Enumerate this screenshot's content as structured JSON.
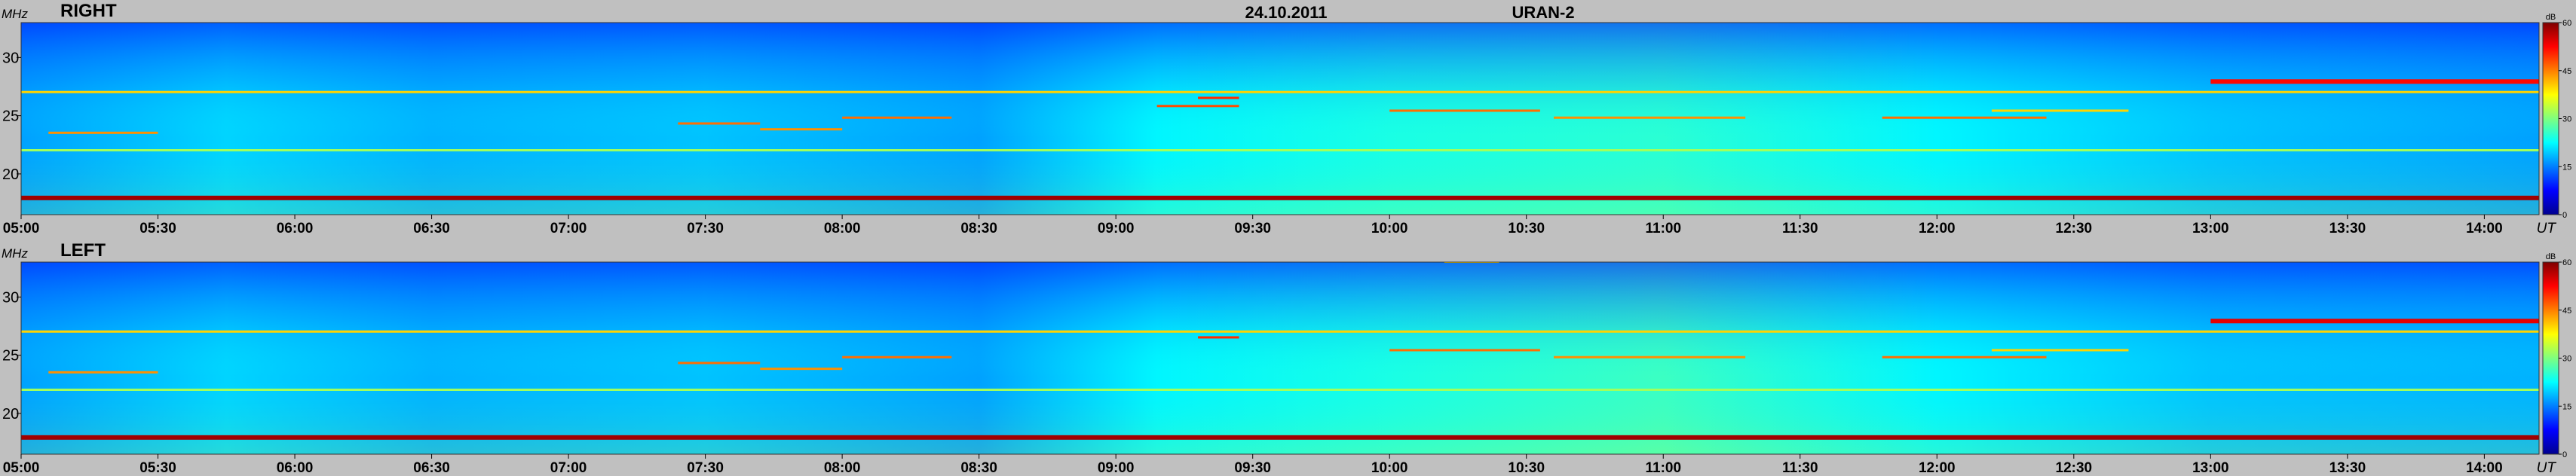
{
  "header": {
    "date": "24.10.2011",
    "instrument": "URAN-2"
  },
  "labels": {
    "freq_unit": "MHz",
    "time_unit": "UT",
    "colorbar_unit": "dB"
  },
  "colors": {
    "background": "#c0c0c0",
    "colormap": [
      "#00008f",
      "#0000ff",
      "#007fff",
      "#00ffff",
      "#7fff7f",
      "#ffff00",
      "#ff7f00",
      "#ff0000",
      "#7f0000"
    ]
  },
  "chart_data": [
    {
      "type": "heatmap",
      "title": "RIGHT",
      "x": {
        "ticks": [
          "05:00",
          "05:30",
          "06:00",
          "06:30",
          "07:00",
          "07:30",
          "08:00",
          "08:30",
          "09:00",
          "09:30",
          "10:00",
          "10:30",
          "11:00",
          "11:30",
          "12:00",
          "12:30",
          "13:00",
          "13:30",
          "14:00"
        ],
        "range_hours": [
          5.0,
          14.2
        ]
      },
      "y": {
        "ticks": [
          20,
          25,
          30
        ],
        "range": [
          16.5,
          33.0
        ]
      },
      "colorbar": {
        "ticks": [
          0,
          15,
          30,
          45,
          60
        ],
        "range": [
          0,
          60
        ]
      },
      "base_level": [
        {
          "t": 5.0,
          "v": 17
        },
        {
          "t": 5.75,
          "v": 20
        },
        {
          "t": 6.5,
          "v": 18
        },
        {
          "t": 7.5,
          "v": 19
        },
        {
          "t": 8.5,
          "v": 17
        },
        {
          "t": 9.15,
          "v": 22
        },
        {
          "t": 10.0,
          "v": 24
        },
        {
          "t": 11.0,
          "v": 25
        },
        {
          "t": 12.0,
          "v": 22
        },
        {
          "t": 13.0,
          "v": 19
        },
        {
          "t": 14.2,
          "v": 17
        }
      ],
      "interference_bands": [
        {
          "freq": 18.0,
          "level": 58,
          "t_start": 5.0,
          "t_end": 14.2
        },
        {
          "freq": 27.0,
          "level": 40,
          "t_start": 5.0,
          "t_end": 14.2
        },
        {
          "freq": 22.0,
          "level": 32,
          "t_start": 5.0,
          "t_end": 14.2
        },
        {
          "freq": 23.5,
          "level": 44,
          "t_start": 5.1,
          "t_end": 5.5
        },
        {
          "freq": 24.3,
          "level": 46,
          "t_start": 7.4,
          "t_end": 7.7
        },
        {
          "freq": 23.8,
          "level": 44,
          "t_start": 7.7,
          "t_end": 8.0
        },
        {
          "freq": 24.8,
          "level": 46,
          "t_start": 8.0,
          "t_end": 8.4
        },
        {
          "freq": 25.8,
          "level": 48,
          "t_start": 9.15,
          "t_end": 9.45
        },
        {
          "freq": 26.5,
          "level": 50,
          "t_start": 9.3,
          "t_end": 9.45
        },
        {
          "freq": 25.4,
          "level": 46,
          "t_start": 10.0,
          "t_end": 10.55
        },
        {
          "freq": 24.8,
          "level": 44,
          "t_start": 10.6,
          "t_end": 11.3
        },
        {
          "freq": 24.8,
          "level": 46,
          "t_start": 11.8,
          "t_end": 12.4
        },
        {
          "freq": 25.4,
          "level": 40,
          "t_start": 12.2,
          "t_end": 12.7
        },
        {
          "freq": 28.0,
          "level": 52,
          "t_start": 13.0,
          "t_end": 14.2
        }
      ]
    },
    {
      "type": "heatmap",
      "title": "LEFT",
      "x": {
        "ticks": [
          "05:00",
          "05:30",
          "06:00",
          "06:30",
          "07:00",
          "07:30",
          "08:00",
          "08:30",
          "09:00",
          "09:30",
          "10:00",
          "10:30",
          "11:00",
          "11:30",
          "12:00",
          "12:30",
          "13:00",
          "13:30",
          "14:00"
        ],
        "range_hours": [
          5.0,
          14.2
        ]
      },
      "y": {
        "ticks": [
          20,
          25,
          30
        ],
        "range": [
          16.5,
          33.0
        ]
      },
      "colorbar": {
        "ticks": [
          0,
          15,
          30,
          45,
          60
        ],
        "range": [
          0,
          60
        ]
      },
      "base_level": [
        {
          "t": 5.0,
          "v": 17
        },
        {
          "t": 5.75,
          "v": 20
        },
        {
          "t": 6.5,
          "v": 18
        },
        {
          "t": 7.5,
          "v": 19
        },
        {
          "t": 8.5,
          "v": 17
        },
        {
          "t": 9.15,
          "v": 22
        },
        {
          "t": 10.0,
          "v": 24
        },
        {
          "t": 11.0,
          "v": 26
        },
        {
          "t": 12.0,
          "v": 22
        },
        {
          "t": 13.0,
          "v": 19
        },
        {
          "t": 14.2,
          "v": 18
        }
      ],
      "interference_bands": [
        {
          "freq": 18.0,
          "level": 58,
          "t_start": 5.0,
          "t_end": 14.2
        },
        {
          "freq": 27.0,
          "level": 40,
          "t_start": 5.0,
          "t_end": 14.2
        },
        {
          "freq": 22.0,
          "level": 32,
          "t_start": 5.0,
          "t_end": 14.2
        },
        {
          "freq": 23.5,
          "level": 44,
          "t_start": 5.1,
          "t_end": 5.5
        },
        {
          "freq": 24.3,
          "level": 46,
          "t_start": 7.4,
          "t_end": 7.7
        },
        {
          "freq": 23.8,
          "level": 44,
          "t_start": 7.7,
          "t_end": 8.0
        },
        {
          "freq": 24.8,
          "level": 46,
          "t_start": 8.0,
          "t_end": 8.4
        },
        {
          "freq": 26.5,
          "level": 50,
          "t_start": 9.3,
          "t_end": 9.45
        },
        {
          "freq": 25.4,
          "level": 46,
          "t_start": 10.0,
          "t_end": 10.55
        },
        {
          "freq": 24.8,
          "level": 44,
          "t_start": 10.6,
          "t_end": 11.3
        },
        {
          "freq": 24.8,
          "level": 46,
          "t_start": 11.8,
          "t_end": 12.4
        },
        {
          "freq": 25.4,
          "level": 40,
          "t_start": 12.2,
          "t_end": 12.7
        },
        {
          "freq": 28.0,
          "level": 54,
          "t_start": 13.0,
          "t_end": 14.2
        },
        {
          "freq": 33.0,
          "level": 40,
          "t_start": 10.2,
          "t_end": 10.4
        }
      ]
    }
  ]
}
